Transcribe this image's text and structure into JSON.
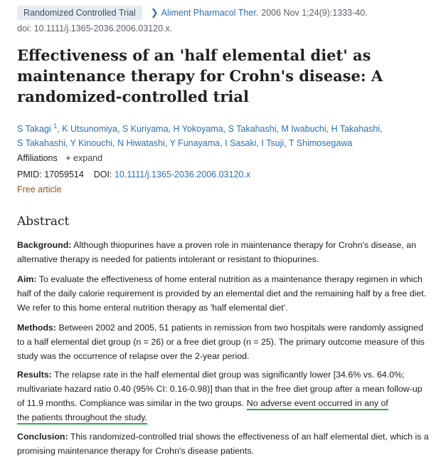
{
  "header": {
    "article_type": "Randomized Controlled Trial",
    "journal": "Aliment Pharmacol Ther.",
    "citation": "2006 Nov 1;24(9):1333-40.",
    "doi_line": "doi: 10.1111/j.1365-2036.2006.03120.x."
  },
  "title": "Effectiveness of an 'half elemental diet' as maintenance therapy for Crohn's disease: A randomized-controlled trial",
  "authors": {
    "first": "S Takagi",
    "first_sup": "1",
    "rest_line1": ", K Utsunomiya, S Kuriyama, H Yokoyama, S Takahashi, M Iwabuchi, H Takahashi,",
    "rest_line2": "S Takahashi, Y Kinouchi, N Hiwatashi, Y Funayama, I Sasaki, I Tsuji, T Shimosegawa"
  },
  "affiliations": {
    "label": "Affiliations",
    "plus": "+",
    "expand": "expand"
  },
  "ids": {
    "pmid_label": "PMID:",
    "pmid": "17059514",
    "doi_label": "DOI:",
    "doi": "10.1111/j.1365-2036.2006.03120.x"
  },
  "free_article": "Free article",
  "abstract": {
    "heading": "Abstract",
    "background_label": "Background:",
    "background_text": "Although thiopurines have a proven role in maintenance therapy for Crohn's disease, an alternative therapy is needed for patients intolerant or resistant to thiopurines.",
    "aim_label": "Aim:",
    "aim_text": "To evaluate the effectiveness of home enteral nutrition as a maintenance therapy regimen in which half of the daily calorie requirement is provided by an elemental diet and the remaining half by a free diet. We refer to this home enteral nutrition therapy as 'half elemental diet'.",
    "methods_label": "Methods:",
    "methods_text": "Between 2002 and 2005, 51 patients in remission from two hospitals were randomly assigned to a half elemental diet group (n = 26) or a free diet group (n = 25). The primary outcome measure of this study was the occurrence of relapse over the 2-year period.",
    "results_label": "Results:",
    "results_text": "The relapse rate in the half elemental diet group was significantly lower [34.6% vs. 64.0%; multivariate hazard ratio 0.40 (95% CI: 0.16-0.98)] than that in the free diet group after a mean follow-up of 11.9 months. Compliance was similar in the two groups.",
    "results_highlight_1": "No adverse event occurred in any of",
    "results_highlight_2": "the patients throughout the study.",
    "conclusion_label": "Conclusion:",
    "conclusion_text": "This randomized-controlled trial shows the effectiveness of an half elemental diet, which is a promising maintenance therapy for Crohn's disease patients."
  },
  "colors": {
    "link": "#2d6fb4",
    "free_article": "#9c5318",
    "highlight_underline": "#2eab48",
    "badge_bg": "#e6ecf2"
  }
}
